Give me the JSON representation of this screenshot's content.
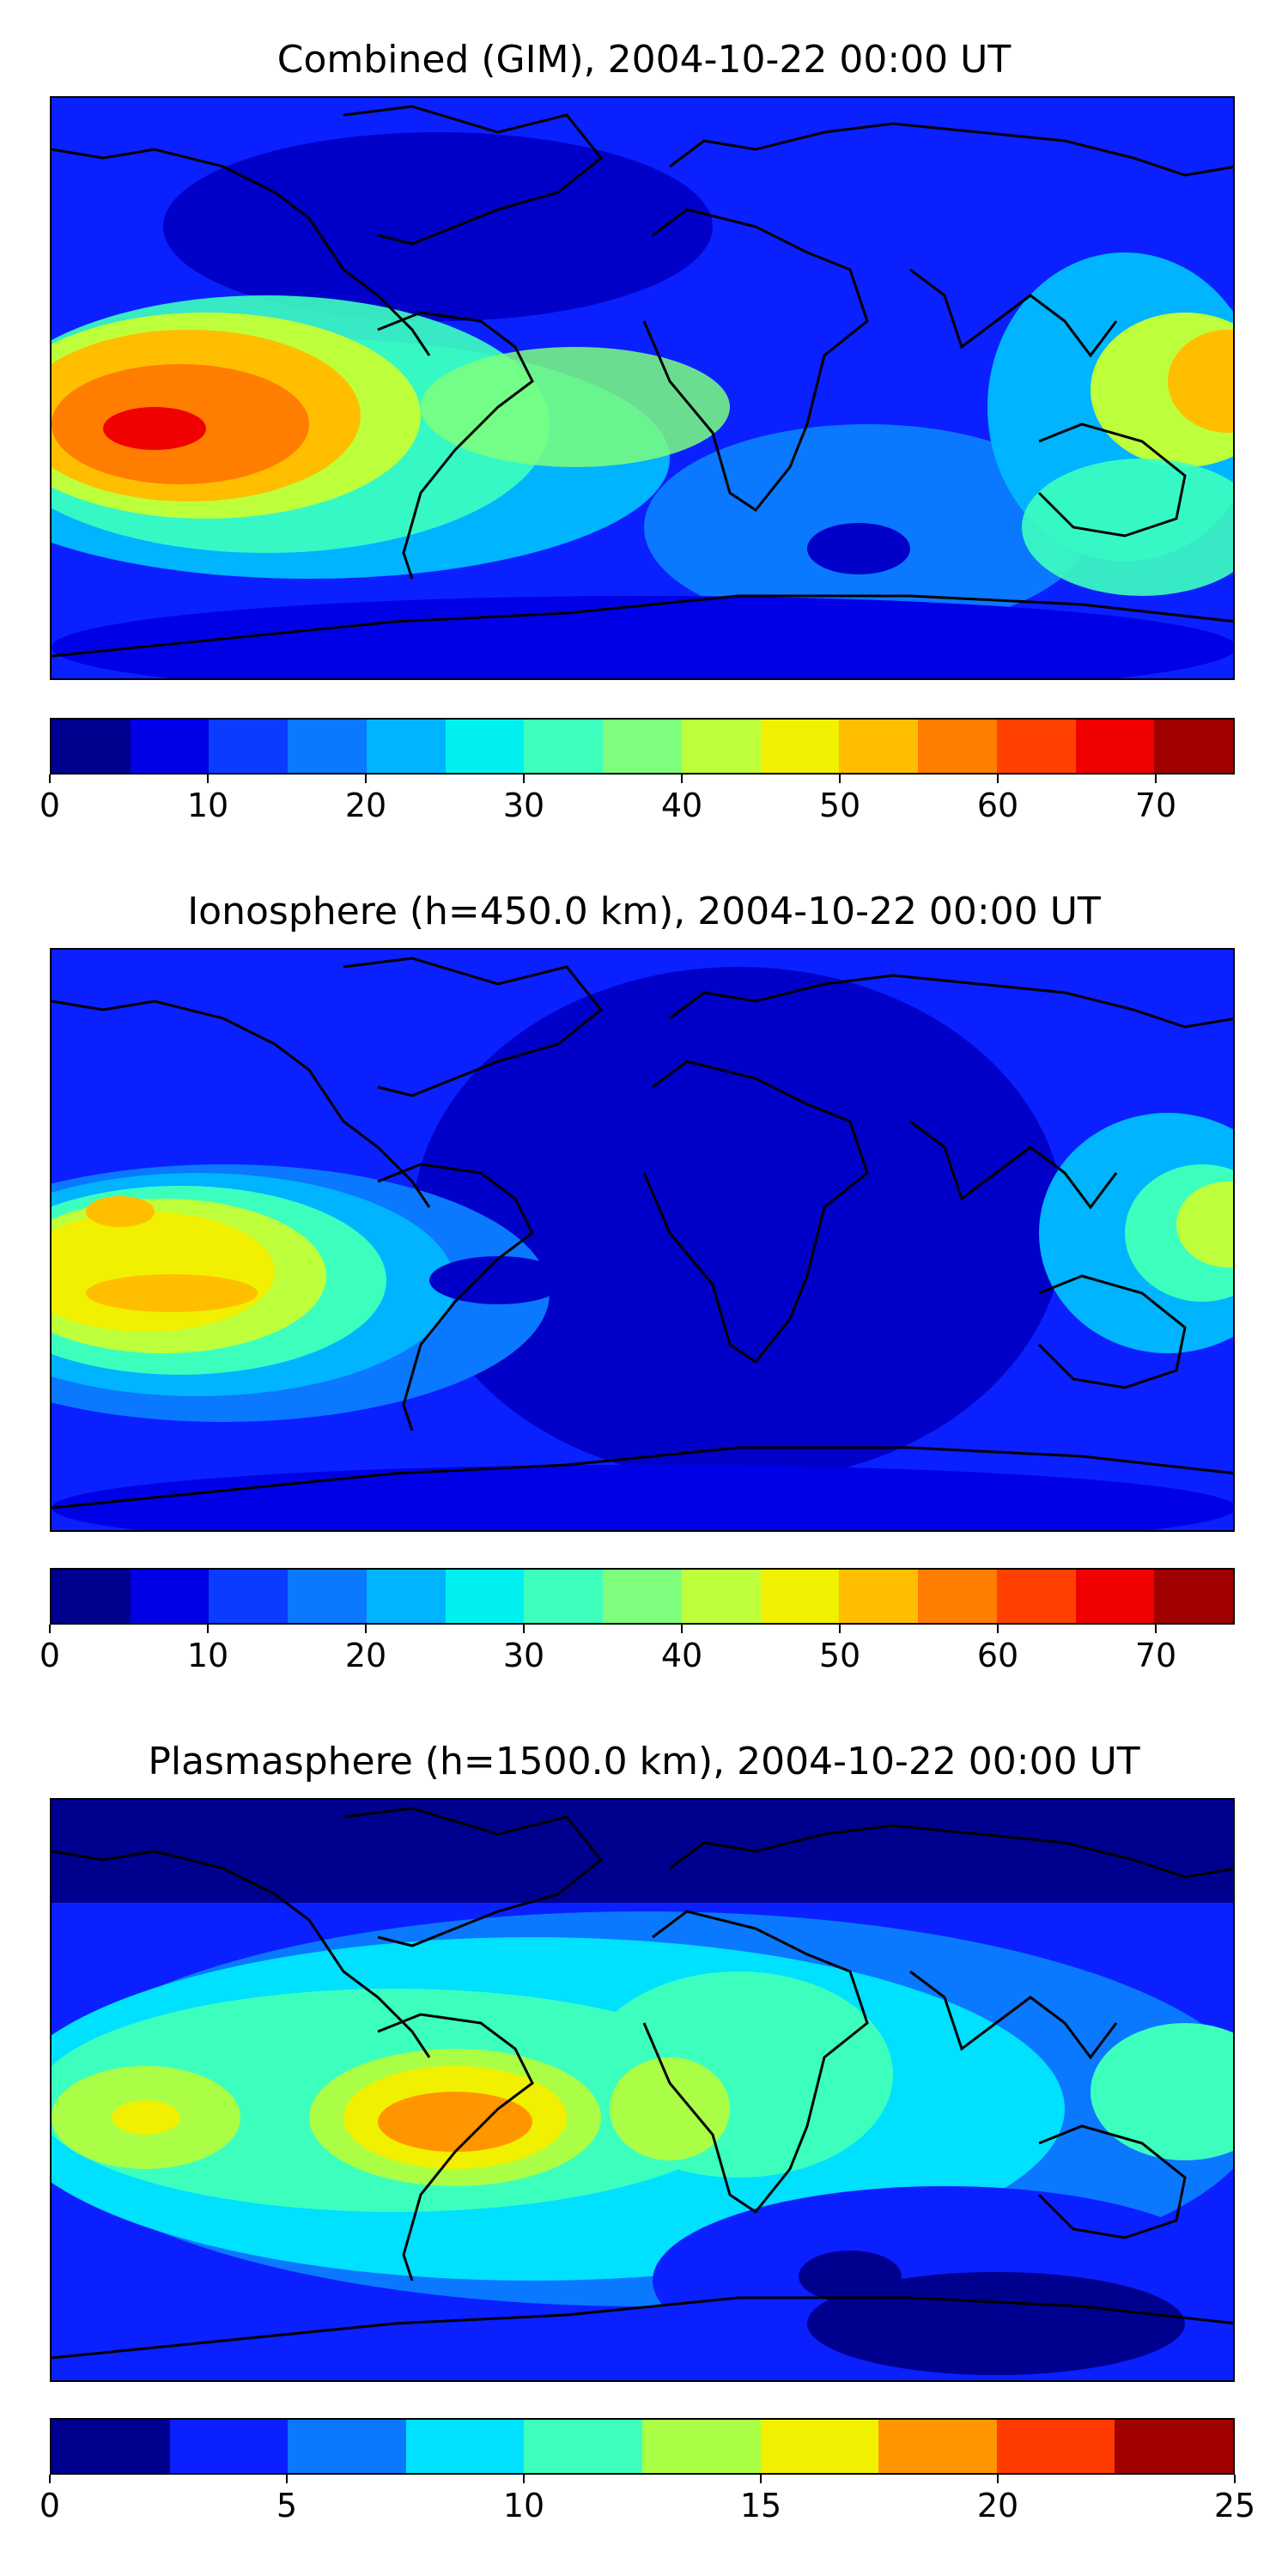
{
  "panels": [
    {
      "title": "Combined (GIM), 2004-10-22 00:00 UT",
      "colorbar": {
        "colors": [
          "#00008f",
          "#0000e6",
          "#0a3cff",
          "#0a78ff",
          "#00b4ff",
          "#00f0f0",
          "#3cffbe",
          "#7dff7d",
          "#beff3c",
          "#f0f000",
          "#ffbe00",
          "#ff7d00",
          "#ff4000",
          "#f00000",
          "#a00000"
        ],
        "ticks": [
          "0",
          "10",
          "20",
          "30",
          "40",
          "50",
          "60",
          "70"
        ],
        "range": [
          0,
          75
        ]
      }
    },
    {
      "title": "Ionosphere  (h=450.0 km), 2004-10-22 00:00 UT",
      "colorbar": {
        "colors": [
          "#00008f",
          "#0000e6",
          "#0a3cff",
          "#0a78ff",
          "#00b4ff",
          "#00f0f0",
          "#3cffbe",
          "#7dff7d",
          "#beff3c",
          "#f0f000",
          "#ffbe00",
          "#ff7d00",
          "#ff4000",
          "#f00000",
          "#a00000"
        ],
        "ticks": [
          "0",
          "10",
          "20",
          "30",
          "40",
          "50",
          "60",
          "70"
        ],
        "range": [
          0,
          75
        ]
      }
    },
    {
      "title": "Plasmasphere (h=1500.0 km), 2004-10-22 00:00 UT",
      "colorbar": {
        "colors": [
          "#00008f",
          "#0a20ff",
          "#0a78ff",
          "#00e0ff",
          "#3cffbe",
          "#aaff46",
          "#f0f000",
          "#ff9600",
          "#ff3c00",
          "#a00000"
        ],
        "ticks": [
          "0",
          "5",
          "10",
          "15",
          "20",
          "25"
        ],
        "range": [
          0,
          25
        ]
      }
    }
  ]
}
